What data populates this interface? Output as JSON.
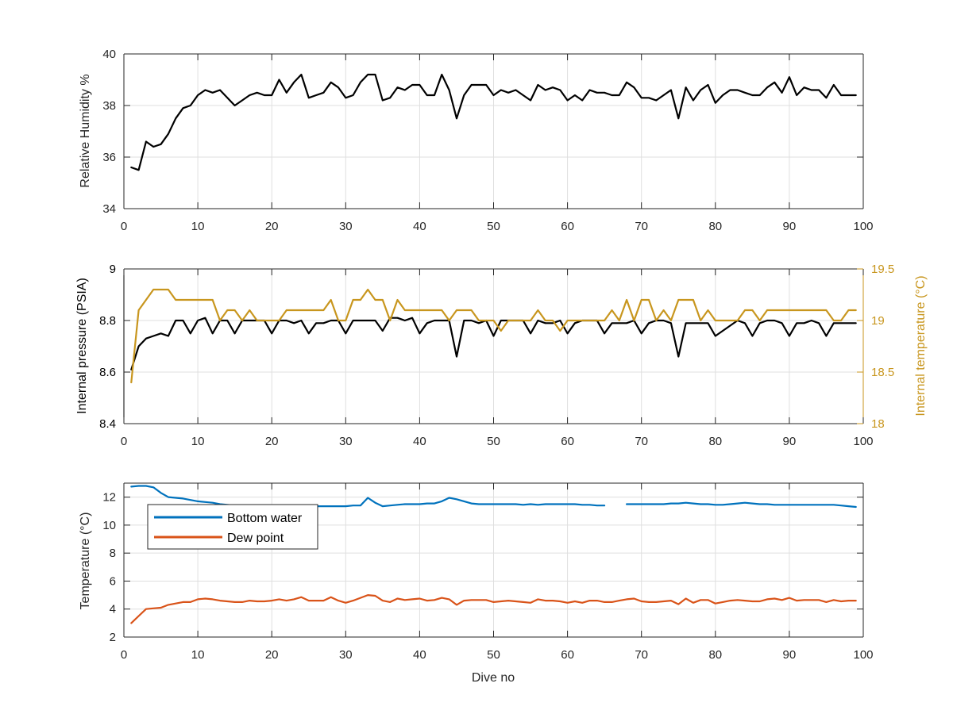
{
  "chart_data": [
    {
      "type": "line",
      "title": "",
      "xlabel": "",
      "ylabel": "Relative Humidity %",
      "xlim": [
        0,
        100
      ],
      "ylim": [
        34,
        40
      ],
      "xticks": [
        0,
        10,
        20,
        30,
        40,
        50,
        60,
        70,
        80,
        90,
        100
      ],
      "yticks": [
        34,
        36,
        38,
        40
      ],
      "grid": true,
      "legend": "none",
      "series": [
        {
          "name": "",
          "color": "#000000",
          "x": [
            1,
            2,
            3,
            4,
            5,
            6,
            7,
            8,
            9,
            10,
            11,
            12,
            13,
            14,
            15,
            16,
            17,
            18,
            19,
            20,
            21,
            22,
            23,
            24,
            25,
            26,
            27,
            28,
            29,
            30,
            31,
            32,
            33,
            34,
            35,
            36,
            37,
            38,
            39,
            40,
            41,
            42,
            43,
            44,
            45,
            46,
            47,
            48,
            49,
            50,
            51,
            52,
            53,
            54,
            55,
            56,
            57,
            58,
            59,
            60,
            61,
            62,
            63,
            64,
            65,
            66,
            67,
            68,
            69,
            70,
            71,
            72,
            73,
            74,
            75,
            76,
            77,
            78,
            79,
            80,
            81,
            82,
            83,
            84,
            85,
            86,
            87,
            88,
            89,
            90,
            91,
            92,
            93,
            94,
            95,
            96,
            97,
            98,
            99
          ],
          "values": [
            35.6,
            35.5,
            36.6,
            36.4,
            36.5,
            36.9,
            37.5,
            37.9,
            38.0,
            38.4,
            38.6,
            38.5,
            38.6,
            38.3,
            38.0,
            38.2,
            38.4,
            38.5,
            38.4,
            38.4,
            39.0,
            38.5,
            38.9,
            39.2,
            38.3,
            38.4,
            38.5,
            38.9,
            38.7,
            38.3,
            38.4,
            38.9,
            39.2,
            39.2,
            38.2,
            38.3,
            38.7,
            38.6,
            38.8,
            38.8,
            38.4,
            38.4,
            39.2,
            38.6,
            37.5,
            38.4,
            38.8,
            38.8,
            38.8,
            38.4,
            38.6,
            38.5,
            38.6,
            38.4,
            38.2,
            38.8,
            38.6,
            38.7,
            38.6,
            38.2,
            38.4,
            38.2,
            38.6,
            38.5,
            38.5,
            38.4,
            38.4,
            38.9,
            38.7,
            38.3,
            38.3,
            38.2,
            38.4,
            38.6,
            37.5,
            38.7,
            38.2,
            38.6,
            38.8,
            38.1,
            38.4,
            38.6,
            38.6,
            38.5,
            38.4,
            38.4,
            38.7,
            38.9,
            38.5,
            39.1,
            38.4,
            38.7,
            38.6,
            38.6,
            38.3,
            38.8,
            38.4,
            38.4,
            38.4
          ]
        }
      ]
    },
    {
      "type": "line",
      "title": "",
      "xlabel": "",
      "ylabel": "Internal pressure (PSIA)",
      "y2label": "Internal temperature (°C)",
      "xlim": [
        0,
        100
      ],
      "ylim": [
        8.4,
        9
      ],
      "y2lim": [
        18,
        19.5
      ],
      "xticks": [
        0,
        10,
        20,
        30,
        40,
        50,
        60,
        70,
        80,
        90,
        100
      ],
      "yticks": [
        8.4,
        8.6,
        8.8,
        9
      ],
      "y2ticks": [
        18,
        18.5,
        19,
        19.5
      ],
      "grid": true,
      "legend": "none",
      "series": [
        {
          "name": "",
          "axis": "left",
          "color": "#000000",
          "x": [
            1,
            2,
            3,
            4,
            5,
            6,
            7,
            8,
            9,
            10,
            11,
            12,
            13,
            14,
            15,
            16,
            17,
            18,
            19,
            20,
            21,
            22,
            23,
            24,
            25,
            26,
            27,
            28,
            29,
            30,
            31,
            32,
            33,
            34,
            35,
            36,
            37,
            38,
            39,
            40,
            41,
            42,
            43,
            44,
            45,
            46,
            47,
            48,
            49,
            50,
            51,
            52,
            53,
            54,
            55,
            56,
            57,
            58,
            59,
            60,
            61,
            62,
            63,
            64,
            65,
            66,
            67,
            68,
            69,
            70,
            71,
            72,
            73,
            74,
            75,
            76,
            77,
            78,
            79,
            80,
            81,
            82,
            83,
            84,
            85,
            86,
            87,
            88,
            89,
            90,
            91,
            92,
            93,
            94,
            95,
            96,
            97,
            98,
            99
          ],
          "values": [
            8.61,
            8.7,
            8.73,
            8.74,
            8.75,
            8.74,
            8.8,
            8.8,
            8.75,
            8.8,
            8.81,
            8.75,
            8.8,
            8.8,
            8.75,
            8.8,
            8.8,
            8.8,
            8.8,
            8.75,
            8.8,
            8.8,
            8.79,
            8.8,
            8.75,
            8.79,
            8.79,
            8.8,
            8.8,
            8.75,
            8.8,
            8.8,
            8.8,
            8.8,
            8.76,
            8.81,
            8.81,
            8.8,
            8.81,
            8.75,
            8.79,
            8.8,
            8.8,
            8.8,
            8.66,
            8.8,
            8.8,
            8.79,
            8.8,
            8.74,
            8.8,
            8.8,
            8.8,
            8.8,
            8.75,
            8.8,
            8.79,
            8.79,
            8.8,
            8.75,
            8.79,
            8.8,
            8.8,
            8.8,
            8.75,
            8.79,
            8.79,
            8.79,
            8.8,
            8.75,
            8.79,
            8.8,
            8.8,
            8.79,
            8.66,
            8.79,
            8.79,
            8.79,
            8.79,
            8.74,
            8.76,
            8.78,
            8.8,
            8.79,
            8.74,
            8.79,
            8.8,
            8.8,
            8.79,
            8.74,
            8.79,
            8.79,
            8.8,
            8.79,
            8.74,
            8.79,
            8.79,
            8.79,
            8.79
          ]
        },
        {
          "name": "",
          "axis": "right",
          "color": "#C8961E",
          "x": [
            1,
            2,
            3,
            4,
            5,
            6,
            7,
            8,
            9,
            10,
            11,
            12,
            13,
            14,
            15,
            16,
            17,
            18,
            19,
            20,
            21,
            22,
            23,
            24,
            25,
            26,
            27,
            28,
            29,
            30,
            31,
            32,
            33,
            34,
            35,
            36,
            37,
            38,
            39,
            40,
            41,
            42,
            43,
            44,
            45,
            46,
            47,
            48,
            49,
            50,
            51,
            52,
            53,
            54,
            55,
            56,
            57,
            58,
            59,
            60,
            61,
            62,
            63,
            64,
            65,
            66,
            67,
            68,
            69,
            70,
            71,
            72,
            73,
            74,
            75,
            76,
            77,
            78,
            79,
            80,
            81,
            82,
            83,
            84,
            85,
            86,
            87,
            88,
            89,
            90,
            91,
            92,
            93,
            94,
            95,
            96,
            97,
            98,
            99
          ],
          "values": [
            18.4,
            19.1,
            19.2,
            19.3,
            19.3,
            19.3,
            19.2,
            19.2,
            19.2,
            19.2,
            19.2,
            19.2,
            19.0,
            19.1,
            19.1,
            19.0,
            19.1,
            19.0,
            19.0,
            19.0,
            19.0,
            19.1,
            19.1,
            19.1,
            19.1,
            19.1,
            19.1,
            19.2,
            19.0,
            19.0,
            19.2,
            19.2,
            19.3,
            19.2,
            19.2,
            19.0,
            19.2,
            19.1,
            19.1,
            19.1,
            19.1,
            19.1,
            19.1,
            19.0,
            19.1,
            19.1,
            19.1,
            19.0,
            19.0,
            19.0,
            18.9,
            19.0,
            19.0,
            19.0,
            19.0,
            19.1,
            19.0,
            19.0,
            18.9,
            19.0,
            19.0,
            19.0,
            19.0,
            19.0,
            19.0,
            19.1,
            19.0,
            19.2,
            19.0,
            19.2,
            19.2,
            19.0,
            19.1,
            19.0,
            19.2,
            19.2,
            19.2,
            19.0,
            19.1,
            19.0,
            19.0,
            19.0,
            19.0,
            19.1,
            19.1,
            19.0,
            19.1,
            19.1,
            19.1,
            19.1,
            19.1,
            19.1,
            19.1,
            19.1,
            19.1,
            19.0,
            19.0,
            19.1,
            19.1
          ]
        }
      ]
    },
    {
      "type": "line",
      "title": "",
      "xlabel": "Dive no",
      "ylabel": "Temperature (°C)",
      "xlim": [
        0,
        100
      ],
      "ylim": [
        2,
        13
      ],
      "xticks": [
        0,
        10,
        20,
        30,
        40,
        50,
        60,
        70,
        80,
        90,
        100
      ],
      "yticks": [
        2,
        4,
        6,
        8,
        10,
        12
      ],
      "grid": true,
      "legend": "top-left",
      "series": [
        {
          "name": "Bottom water",
          "color": "#0072BD",
          "x": [
            1,
            2,
            3,
            4,
            5,
            6,
            7,
            8,
            9,
            10,
            11,
            12,
            13,
            14,
            15,
            16,
            17,
            18,
            19,
            20,
            21,
            22,
            23,
            24,
            25,
            26,
            27,
            28,
            29,
            30,
            31,
            32,
            33,
            34,
            35,
            36,
            37,
            38,
            39,
            40,
            41,
            42,
            43,
            44,
            45,
            46,
            47,
            48,
            49,
            50,
            51,
            52,
            53,
            54,
            55,
            56,
            57,
            58,
            59,
            60,
            61,
            62,
            63,
            64,
            65,
            66,
            67,
            68,
            69,
            70,
            71,
            72,
            73,
            74,
            75,
            76,
            77,
            78,
            79,
            80,
            81,
            82,
            83,
            84,
            85,
            86,
            87,
            88,
            89,
            90,
            91,
            92,
            93,
            94,
            95,
            96,
            97,
            98,
            99
          ],
          "values": [
            12.75,
            12.8,
            12.8,
            12.7,
            12.3,
            12.0,
            11.95,
            11.9,
            11.8,
            11.7,
            11.65,
            11.6,
            11.5,
            11.45,
            11.4,
            11.4,
            11.4,
            11.4,
            11.4,
            11.4,
            11.4,
            11.4,
            11.4,
            11.4,
            11.4,
            11.35,
            11.35,
            11.35,
            11.35,
            11.35,
            11.4,
            11.4,
            11.95,
            11.6,
            11.35,
            11.4,
            11.45,
            11.5,
            11.5,
            11.5,
            11.55,
            11.55,
            11.7,
            11.95,
            11.85,
            11.7,
            11.55,
            11.5,
            11.5,
            11.5,
            11.5,
            11.5,
            11.5,
            11.45,
            11.5,
            11.45,
            11.5,
            11.5,
            11.5,
            11.5,
            11.5,
            11.45,
            11.45,
            11.4,
            11.4,
            null,
            null,
            11.5,
            11.5,
            11.5,
            11.5,
            11.5,
            11.5,
            11.55,
            11.55,
            11.6,
            11.55,
            11.5,
            11.5,
            11.45,
            11.45,
            11.5,
            11.55,
            11.6,
            11.55,
            11.5,
            11.5,
            11.45,
            11.45,
            11.45,
            11.45,
            11.45,
            11.45,
            11.45,
            11.45,
            11.45,
            11.4,
            11.35,
            11.3
          ]
        },
        {
          "name": "Dew point",
          "color": "#D95319",
          "x": [
            1,
            2,
            3,
            4,
            5,
            6,
            7,
            8,
            9,
            10,
            11,
            12,
            13,
            14,
            15,
            16,
            17,
            18,
            19,
            20,
            21,
            22,
            23,
            24,
            25,
            26,
            27,
            28,
            29,
            30,
            31,
            32,
            33,
            34,
            35,
            36,
            37,
            38,
            39,
            40,
            41,
            42,
            43,
            44,
            45,
            46,
            47,
            48,
            49,
            50,
            51,
            52,
            53,
            54,
            55,
            56,
            57,
            58,
            59,
            60,
            61,
            62,
            63,
            64,
            65,
            66,
            67,
            68,
            69,
            70,
            71,
            72,
            73,
            74,
            75,
            76,
            77,
            78,
            79,
            80,
            81,
            82,
            83,
            84,
            85,
            86,
            87,
            88,
            89,
            90,
            91,
            92,
            93,
            94,
            95,
            96,
            97,
            98,
            99
          ],
          "values": [
            3.0,
            3.5,
            4.0,
            4.05,
            4.1,
            4.3,
            4.4,
            4.5,
            4.5,
            4.7,
            4.75,
            4.7,
            4.6,
            4.55,
            4.5,
            4.5,
            4.6,
            4.55,
            4.55,
            4.6,
            4.7,
            4.6,
            4.7,
            4.85,
            4.6,
            4.6,
            4.6,
            4.85,
            4.6,
            4.45,
            4.6,
            4.8,
            5.0,
            4.95,
            4.6,
            4.5,
            4.75,
            4.65,
            4.7,
            4.75,
            4.6,
            4.65,
            4.8,
            4.7,
            4.3,
            4.6,
            4.65,
            4.65,
            4.65,
            4.5,
            4.55,
            4.6,
            4.55,
            4.5,
            4.45,
            4.7,
            4.6,
            4.6,
            4.55,
            4.45,
            4.55,
            4.45,
            4.6,
            4.6,
            4.5,
            4.5,
            4.6,
            4.7,
            4.75,
            4.55,
            4.5,
            4.5,
            4.55,
            4.6,
            4.35,
            4.75,
            4.45,
            4.65,
            4.65,
            4.4,
            4.5,
            4.6,
            4.65,
            4.6,
            4.55,
            4.55,
            4.7,
            4.75,
            4.65,
            4.8,
            4.6,
            4.65,
            4.65,
            4.65,
            4.5,
            4.65,
            4.55,
            4.6,
            4.6
          ]
        }
      ]
    }
  ]
}
